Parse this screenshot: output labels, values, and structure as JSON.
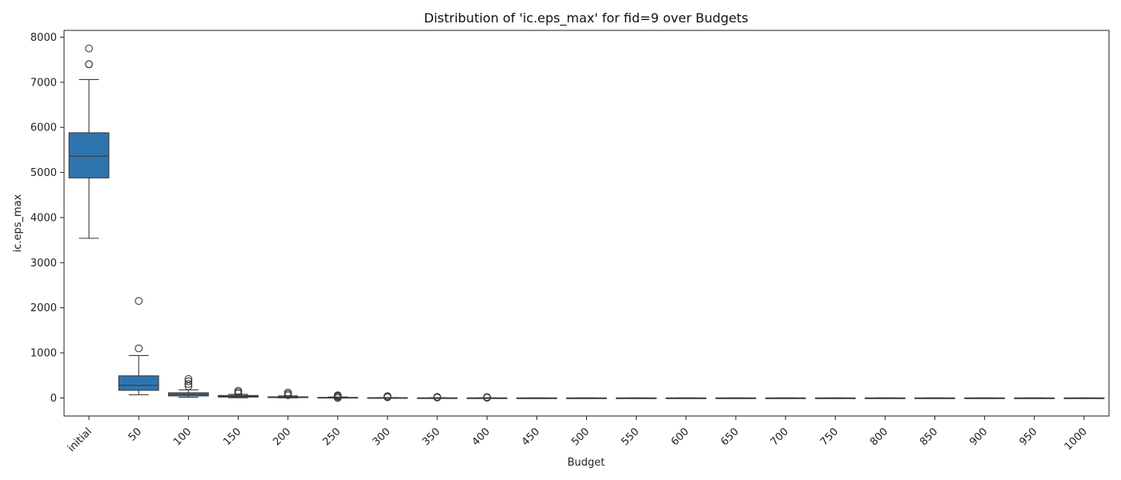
{
  "chart_data": {
    "type": "box",
    "title": "Distribution of 'ic.eps_max' for fid=9 over Budgets",
    "xlabel": "Budget",
    "ylabel": "ic.eps_max",
    "ylim": [
      -400,
      8150
    ],
    "yticks": [
      0,
      1000,
      2000,
      3000,
      4000,
      5000,
      6000,
      7000,
      8000
    ],
    "grid": false,
    "legend": "none",
    "color": "#2e75b0",
    "categories": [
      "initial",
      "50",
      "100",
      "150",
      "200",
      "250",
      "300",
      "350",
      "400",
      "450",
      "500",
      "550",
      "600",
      "650",
      "700",
      "750",
      "800",
      "850",
      "900",
      "950",
      "1000"
    ],
    "boxes": [
      {
        "category": "initial",
        "whisker_low": 3540,
        "q1": 4880,
        "median": 5360,
        "q3": 5880,
        "whisker_high": 7060,
        "outliers": [
          7400,
          7400,
          7750
        ]
      },
      {
        "category": "50",
        "whisker_low": 70,
        "q1": 170,
        "median": 280,
        "q3": 490,
        "whisker_high": 940,
        "outliers": [
          1100,
          2150
        ]
      },
      {
        "category": "100",
        "whisker_low": 15,
        "q1": 45,
        "median": 75,
        "q3": 115,
        "whisker_high": 180,
        "outliers": [
          260,
          310,
          370,
          420
        ]
      },
      {
        "category": "150",
        "whisker_low": 5,
        "q1": 20,
        "median": 35,
        "q3": 55,
        "whisker_high": 80,
        "outliers": [
          100,
          130,
          160
        ]
      },
      {
        "category": "200",
        "whisker_low": 2,
        "q1": 8,
        "median": 15,
        "q3": 25,
        "whisker_high": 45,
        "outliers": [
          60,
          90,
          120
        ]
      },
      {
        "category": "250",
        "whisker_low": 1,
        "q1": 3,
        "median": 7,
        "q3": 12,
        "whisker_high": 22,
        "outliers": [
          0,
          5,
          30,
          45,
          60
        ]
      },
      {
        "category": "300",
        "whisker_low": 0,
        "q1": 1,
        "median": 3,
        "q3": 6,
        "whisker_high": 10,
        "outliers": [
          15,
          25,
          40
        ]
      },
      {
        "category": "350",
        "whisker_low": 0,
        "q1": 0.5,
        "median": 1,
        "q3": 2,
        "whisker_high": 4,
        "outliers": [
          8,
          15,
          25
        ]
      },
      {
        "category": "400",
        "whisker_low": 0,
        "q1": 0.2,
        "median": 0.5,
        "q3": 1,
        "whisker_high": 2,
        "outliers": [
          5,
          10,
          20
        ]
      },
      {
        "category": "450",
        "whisker_low": 0,
        "q1": 0,
        "median": 0,
        "q3": 0,
        "whisker_high": 0,
        "outliers": []
      },
      {
        "category": "500",
        "whisker_low": 0,
        "q1": 0,
        "median": 0,
        "q3": 0,
        "whisker_high": 0,
        "outliers": []
      },
      {
        "category": "550",
        "whisker_low": 0,
        "q1": 0,
        "median": 0,
        "q3": 0,
        "whisker_high": 0,
        "outliers": []
      },
      {
        "category": "600",
        "whisker_low": 0,
        "q1": 0,
        "median": 0,
        "q3": 0,
        "whisker_high": 0,
        "outliers": []
      },
      {
        "category": "650",
        "whisker_low": 0,
        "q1": 0,
        "median": 0,
        "q3": 0,
        "whisker_high": 0,
        "outliers": []
      },
      {
        "category": "700",
        "whisker_low": 0,
        "q1": 0,
        "median": 0,
        "q3": 0,
        "whisker_high": 0,
        "outliers": []
      },
      {
        "category": "750",
        "whisker_low": 0,
        "q1": 0,
        "median": 0,
        "q3": 0,
        "whisker_high": 0,
        "outliers": []
      },
      {
        "category": "800",
        "whisker_low": 0,
        "q1": 0,
        "median": 0,
        "q3": 0,
        "whisker_high": 0,
        "outliers": []
      },
      {
        "category": "850",
        "whisker_low": 0,
        "q1": 0,
        "median": 0,
        "q3": 0,
        "whisker_high": 0,
        "outliers": []
      },
      {
        "category": "900",
        "whisker_low": 0,
        "q1": 0,
        "median": 0,
        "q3": 0,
        "whisker_high": 0,
        "outliers": []
      },
      {
        "category": "950",
        "whisker_low": 0,
        "q1": 0,
        "median": 0,
        "q3": 0,
        "whisker_high": 0,
        "outliers": []
      },
      {
        "category": "1000",
        "whisker_low": 0,
        "q1": 0,
        "median": 0,
        "q3": 0,
        "whisker_high": 0,
        "outliers": []
      }
    ]
  }
}
